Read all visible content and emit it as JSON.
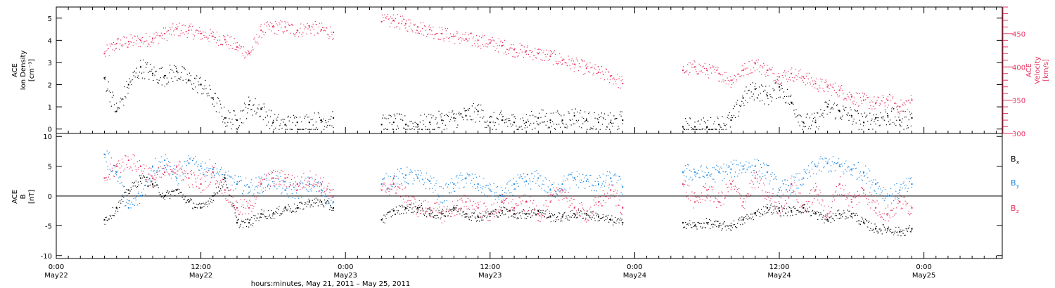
{
  "figure": {
    "xlabel": "hours:minutes, May 21, 2011 – May 25, 2011",
    "x_ticks": [
      {
        "t": 0,
        "time": "0:00",
        "date": "May22"
      },
      {
        "t": 12,
        "time": "12:00",
        "date": "May22"
      },
      {
        "t": 24,
        "time": "0:00",
        "date": "May23"
      },
      {
        "t": 36,
        "time": "12:00",
        "date": "May23"
      },
      {
        "t": 48,
        "time": "0:00",
        "date": "May24"
      },
      {
        "t": 60,
        "time": "12:00",
        "date": "May24"
      },
      {
        "t": 72,
        "time": "0:00",
        "date": "May25"
      }
    ],
    "xlim_hours": [
      0,
      78.5
    ],
    "colors": {
      "black": "#000000",
      "pink": "#e8305e",
      "blue": "#1a86e0"
    }
  },
  "chart_data": [
    {
      "type": "scatter",
      "title": "",
      "ylabel_left": [
        "ACE",
        "Ion Density",
        "[cm⁻³]"
      ],
      "ylabel_right": [
        "ACE",
        "Velocity",
        "[km/s]"
      ],
      "ylim_left": [
        -0.2,
        5.5
      ],
      "ylim_right": [
        300,
        490
      ],
      "yticks_left": [
        0,
        1,
        2,
        3,
        4,
        5
      ],
      "yticks_right": [
        300,
        350,
        400,
        450
      ],
      "data_gaps_hours": [
        [
          0,
          3.8
        ],
        [
          23.9,
          27.0
        ],
        [
          47.8,
          51.7
        ],
        [
          71.8,
          78.5
        ]
      ],
      "series": [
        {
          "name": "Ion Density",
          "axis": "left",
          "color": "#000000",
          "x": [
            4,
            5,
            6,
            7,
            8,
            9,
            10,
            11,
            12,
            13,
            14,
            15,
            16,
            17,
            18,
            19,
            20,
            21,
            22,
            23,
            27,
            28,
            29,
            30,
            31,
            32,
            33,
            34,
            35,
            36,
            37,
            38,
            39,
            40,
            41,
            42,
            43,
            44,
            45,
            46,
            47,
            52,
            53,
            54,
            55,
            56,
            57,
            58,
            59,
            60,
            61,
            62,
            63,
            64,
            65,
            66,
            67,
            68,
            69,
            70,
            71
          ],
          "y": [
            2.3,
            0.8,
            2.0,
            2.8,
            2.5,
            2.4,
            2.6,
            2.2,
            2.0,
            1.4,
            0.5,
            0.4,
            1.1,
            0.9,
            0.3,
            0.2,
            0.3,
            0.3,
            0.4,
            0.5,
            0.2,
            0.3,
            0.2,
            0.2,
            0.3,
            0.4,
            0.5,
            0.6,
            0.8,
            0.3,
            0.4,
            0.3,
            0.3,
            0.5,
            0.4,
            0.4,
            0.6,
            0.4,
            0.3,
            0.3,
            0.4,
            0.1,
            0.1,
            0.1,
            0.2,
            0.4,
            1.4,
            1.8,
            1.5,
            1.9,
            1.2,
            0.3,
            0.3,
            1.0,
            0.8,
            0.6,
            0.3,
            0.5,
            0.6,
            0.4,
            0.5
          ]
        },
        {
          "name": "Velocity",
          "axis": "right",
          "color": "#e8305e",
          "x": [
            4,
            5,
            6,
            7,
            8,
            9,
            10,
            11,
            12,
            13,
            14,
            15,
            16,
            17,
            18,
            19,
            20,
            21,
            22,
            23,
            27,
            28,
            29,
            30,
            31,
            32,
            33,
            34,
            35,
            36,
            37,
            38,
            39,
            40,
            41,
            42,
            43,
            44,
            45,
            46,
            47,
            52,
            53,
            54,
            55,
            56,
            57,
            58,
            59,
            60,
            61,
            62,
            63,
            64,
            65,
            66,
            67,
            68,
            69,
            70,
            71
          ],
          "y": [
            420,
            435,
            438,
            440,
            443,
            450,
            457,
            455,
            450,
            446,
            441,
            430,
            420,
            455,
            460,
            460,
            455,
            460,
            456,
            452,
            468,
            470,
            465,
            460,
            456,
            450,
            446,
            442,
            440,
            436,
            432,
            426,
            424,
            420,
            416,
            410,
            404,
            398,
            392,
            386,
            375,
            395,
            400,
            395,
            390,
            380,
            395,
            405,
            395,
            385,
            390,
            385,
            375,
            370,
            365,
            355,
            350,
            345,
            350,
            340,
            350
          ]
        }
      ]
    },
    {
      "type": "scatter",
      "title": "",
      "ylabel_left": [
        "ACE",
        "B",
        "[nT]"
      ],
      "ylim": [
        -10.5,
        10.5
      ],
      "yticks": [
        -10,
        -5,
        0,
        5,
        10
      ],
      "zero_line": true,
      "data_gaps_hours": [
        [
          0,
          3.8
        ],
        [
          23.9,
          27.0
        ],
        [
          47.8,
          51.7
        ],
        [
          71.8,
          78.5
        ]
      ],
      "legend_placement": "right",
      "legend": [
        {
          "label": "B",
          "sub": "x",
          "color": "#000000"
        },
        {
          "label": "B",
          "sub": "y",
          "color": "#1a86e0"
        },
        {
          "label": "B",
          "sub": "z",
          "color": "#e8305e"
        }
      ],
      "series": [
        {
          "name": "Bx",
          "color": "#000000",
          "x": [
            4,
            5,
            6,
            7,
            8,
            9,
            10,
            11,
            12,
            13,
            14,
            15,
            16,
            17,
            18,
            19,
            20,
            21,
            22,
            23,
            27,
            28,
            29,
            30,
            31,
            32,
            33,
            34,
            35,
            36,
            37,
            38,
            39,
            40,
            41,
            42,
            43,
            44,
            45,
            46,
            47,
            52,
            53,
            54,
            55,
            56,
            57,
            58,
            59,
            60,
            61,
            62,
            63,
            64,
            65,
            66,
            67,
            68,
            69,
            70,
            71
          ],
          "y": [
            -4,
            -2,
            1,
            3,
            2,
            0,
            1,
            -1,
            -2,
            0,
            3,
            -4.5,
            -4.5,
            -3,
            -3,
            -2,
            -2,
            -1,
            -1,
            -2,
            -4,
            -2.5,
            -2,
            -2,
            -3,
            -3,
            -2,
            -3,
            -3.5,
            -3,
            -2.5,
            -3,
            -3,
            -2.5,
            -3.5,
            -3.5,
            -3,
            -3,
            -3.5,
            -4,
            -4.5,
            -4.5,
            -5,
            -4.5,
            -5,
            -5,
            -4,
            -3,
            -2,
            -2.5,
            -2.5,
            -2,
            -3,
            -4,
            -3,
            -3,
            -4.5,
            -5.5,
            -5.5,
            -6,
            -5.5
          ]
        },
        {
          "name": "By",
          "color": "#1a86e0",
          "x": [
            4,
            5,
            6,
            7,
            8,
            9,
            10,
            11,
            12,
            13,
            14,
            15,
            16,
            17,
            18,
            19,
            20,
            21,
            22,
            23,
            27,
            28,
            29,
            30,
            31,
            32,
            33,
            34,
            35,
            36,
            37,
            38,
            39,
            40,
            41,
            42,
            43,
            44,
            45,
            46,
            47,
            52,
            53,
            54,
            55,
            56,
            57,
            58,
            59,
            60,
            61,
            62,
            63,
            64,
            65,
            66,
            67,
            68,
            69,
            70,
            71
          ],
          "y": [
            7,
            4,
            -2,
            0,
            5,
            6,
            3,
            5.5,
            5,
            4.5,
            3,
            2,
            1.5,
            2,
            3,
            1,
            1,
            2,
            1,
            -1,
            2,
            3,
            3.5,
            3,
            2.5,
            0,
            2,
            3,
            2,
            1,
            0,
            2,
            2.5,
            3,
            1,
            2,
            3,
            2.5,
            2,
            3,
            1.5,
            4,
            4,
            3.5,
            4,
            4.5,
            5,
            5,
            4,
            1,
            2,
            3,
            5,
            5.5,
            5,
            4.5,
            4,
            2,
            0,
            1,
            2
          ]
        },
        {
          "name": "Bz",
          "color": "#e8305e",
          "x": [
            4,
            5,
            6,
            7,
            8,
            9,
            10,
            11,
            12,
            13,
            14,
            15,
            16,
            17,
            18,
            19,
            20,
            21,
            22,
            23,
            27,
            28,
            29,
            30,
            31,
            32,
            33,
            34,
            35,
            36,
            37,
            38,
            39,
            40,
            41,
            42,
            43,
            44,
            45,
            46,
            47,
            52,
            53,
            54,
            55,
            56,
            57,
            58,
            59,
            60,
            61,
            62,
            63,
            64,
            65,
            66,
            67,
            68,
            69,
            70,
            71
          ],
          "y": [
            3,
            5,
            6,
            5,
            3,
            4,
            5,
            3,
            2,
            4,
            1,
            -2,
            -2,
            2,
            3,
            3,
            2,
            3,
            2,
            0,
            1,
            2,
            0,
            -2,
            -2,
            -3,
            -2,
            -1,
            -2,
            -3,
            -1,
            -2,
            -1,
            -3,
            -1,
            1,
            -2,
            -3,
            -1,
            1,
            -2,
            2,
            -1,
            1,
            -1,
            2,
            -1,
            3,
            0,
            -2,
            2,
            -2,
            1,
            -3,
            2,
            -1,
            1,
            -2,
            -3,
            -1,
            -2
          ]
        }
      ]
    }
  ]
}
